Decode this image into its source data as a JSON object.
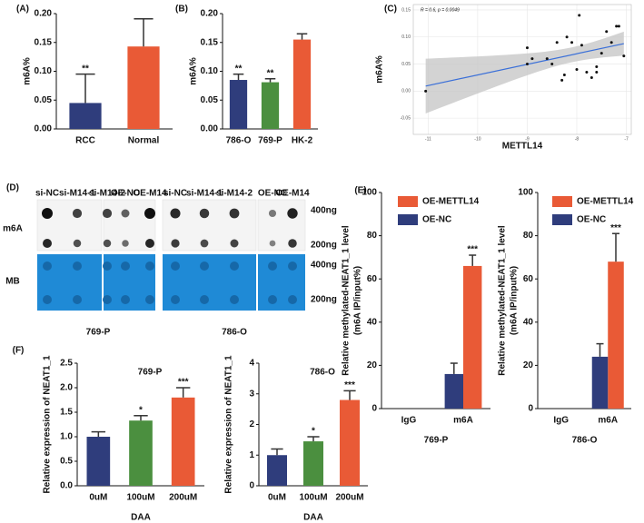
{
  "chart_data": [
    {
      "type": "bar",
      "panel": "(A)",
      "ylabel": "m6A%",
      "categories": [
        "RCC",
        "Normal"
      ],
      "values": [
        0.045,
        0.143
      ],
      "errors": [
        0.05,
        0.048
      ],
      "colors": [
        "#2f3d7c",
        "#e95a36"
      ],
      "annotations": [
        "**",
        null
      ],
      "ylim": [
        0,
        0.2
      ],
      "yticks": [
        {
          "value": 0,
          "label": "0.00"
        },
        {
          "value": 0.05,
          "label": "0.05"
        },
        {
          "value": 0.1,
          "label": "0.10"
        },
        {
          "value": 0.15,
          "label": "0.15"
        },
        {
          "value": 0.2,
          "label": "0.20"
        }
      ]
    },
    {
      "type": "bar",
      "panel": "(B)",
      "ylabel": "m6A%",
      "categories": [
        "786-O",
        "769-P",
        "HK-2"
      ],
      "values": [
        0.085,
        0.081,
        0.155
      ],
      "errors": [
        0.01,
        0.006,
        0.01
      ],
      "colors": [
        "#2f3d7c",
        "#4b8f3f",
        "#e95a36"
      ],
      "annotations": [
        "**",
        "**",
        null
      ],
      "ylim": [
        0,
        0.2
      ],
      "yticks": [
        {
          "value": 0,
          "label": "0.00"
        },
        {
          "value": 0.05,
          "label": "0.05"
        },
        {
          "value": 0.1,
          "label": "0.10"
        },
        {
          "value": 0.15,
          "label": "0.15"
        },
        {
          "value": 0.2,
          "label": "0.20"
        }
      ]
    },
    {
      "type": "scatter",
      "panel": "(C)",
      "annotation": "R = 0.6, p = 0.0049",
      "xlabel": "METTL14",
      "ylabel": "m6A%",
      "color": "#111111",
      "fit_color": "#3a6fd8",
      "x": [
        -11.05,
        -9.0,
        -8.9,
        -8.6,
        -8.5,
        -8.4,
        -8.2,
        -8.1,
        -8.0,
        -7.9,
        -7.8,
        -7.7,
        -7.6,
        -7.5,
        -7.4,
        -7.3,
        -7.2,
        -7.15,
        -7.05,
        -8.3,
        -8.25,
        -7.95,
        -9.0,
        -7.6
      ],
      "y": [
        0.0,
        0.08,
        0.06,
        0.06,
        0.05,
        0.09,
        0.1,
        0.09,
        0.04,
        0.085,
        0.035,
        0.025,
        0.045,
        0.07,
        0.11,
        0.09,
        0.12,
        0.12,
        0.065,
        0.02,
        0.03,
        0.14,
        0.05,
        0.035
      ],
      "xlim": [
        -11.3,
        -6.9
      ],
      "xticks": [
        -11,
        -10,
        -9,
        -8,
        -7
      ],
      "ylim": [
        -0.08,
        0.16
      ],
      "yticks": [
        {
          "value": -0.05,
          "label": "-0.05"
        },
        {
          "value": 0,
          "label": "0.00"
        },
        {
          "value": 0.05,
          "label": "0.05"
        },
        {
          "value": 0.1,
          "label": "0.10"
        },
        {
          "value": 0.15,
          "label": "0.15"
        }
      ]
    },
    {
      "type": "bar",
      "panel": "(E)",
      "ylabel": [
        "Relative methylated-NEAT1_1 level",
        "(m6A IP/input%)"
      ],
      "xlabel": "769-P",
      "categories": [
        "IgG",
        "m6A"
      ],
      "series": [
        {
          "name": "OE-METTL14",
          "color": "#e95a36",
          "values": [
            0,
            66
          ],
          "errors": [
            0,
            5
          ],
          "annotations": [
            null,
            "***"
          ]
        },
        {
          "name": "OE-NC",
          "color": "#2f3d7c",
          "values": [
            0,
            16
          ],
          "errors": [
            0,
            5
          ],
          "annotations": [
            null,
            null
          ]
        }
      ],
      "ylim": [
        0,
        100
      ],
      "yticks": [
        0,
        20,
        40,
        60,
        80,
        100
      ]
    },
    {
      "type": "bar",
      "ylabel": [
        "Relative methylated-NEAT1_1 level",
        "(m6A IP/input%)"
      ],
      "xlabel": "786-O",
      "categories": [
        "IgG",
        "m6A"
      ],
      "series": [
        {
          "name": "OE-METTL14",
          "color": "#e95a36",
          "values": [
            0,
            68
          ],
          "errors": [
            0,
            13
          ],
          "annotations": [
            null,
            "***"
          ]
        },
        {
          "name": "OE-NC",
          "color": "#2f3d7c",
          "values": [
            0,
            24
          ],
          "errors": [
            0,
            6
          ],
          "annotations": [
            null,
            null
          ]
        }
      ],
      "ylim": [
        0,
        100
      ],
      "yticks": [
        0,
        20,
        40,
        60,
        80,
        100
      ]
    },
    {
      "type": "bar",
      "panel": "(F)",
      "title": "769-P",
      "ylabel": "Relative expression of  NEAT1_1",
      "xlabel": "DAA",
      "categories": [
        "0uM",
        "100uM",
        "200uM"
      ],
      "values": [
        1.0,
        1.33,
        1.8
      ],
      "errors": [
        0.1,
        0.1,
        0.2
      ],
      "colors": [
        "#2f3d7c",
        "#4b8f3f",
        "#e95a36"
      ],
      "annotations": [
        null,
        "*",
        "***"
      ],
      "ylim": [
        0,
        2.5
      ],
      "yticks": [
        {
          "value": 0,
          "label": "0.0"
        },
        {
          "value": 0.5,
          "label": "0.5"
        },
        {
          "value": 1,
          "label": "1.0"
        },
        {
          "value": 1.5,
          "label": "1.5"
        },
        {
          "value": 2,
          "label": "2.0"
        },
        {
          "value": 2.5,
          "label": "2.5"
        }
      ]
    },
    {
      "type": "bar",
      "title": "786-O",
      "ylabel": "Relative expression of  NEAT1_1",
      "xlabel": "DAA",
      "categories": [
        "0uM",
        "100uM",
        "200uM"
      ],
      "values": [
        1.0,
        1.45,
        2.8
      ],
      "errors": [
        0.2,
        0.15,
        0.3
      ],
      "colors": [
        "#2f3d7c",
        "#4b8f3f",
        "#e95a36"
      ],
      "annotations": [
        null,
        "*",
        "***"
      ],
      "ylim": [
        0,
        4
      ],
      "yticks": [
        0,
        1,
        2,
        3,
        4
      ]
    }
  ],
  "blot": {
    "panel": "(D)",
    "columns": [
      "si-NC",
      "si-M14-1",
      "si-M14-2",
      "OE-NC",
      "OE-M14",
      "si-NC",
      "si-M14-1",
      "si-M14-2",
      "OE-NC",
      "OE-M14"
    ],
    "rows": [
      "m6A",
      "MB"
    ],
    "amounts": [
      "400ng",
      "200ng",
      "400ng",
      "200ng"
    ],
    "cells": [
      "769-P",
      "786-O"
    ]
  }
}
